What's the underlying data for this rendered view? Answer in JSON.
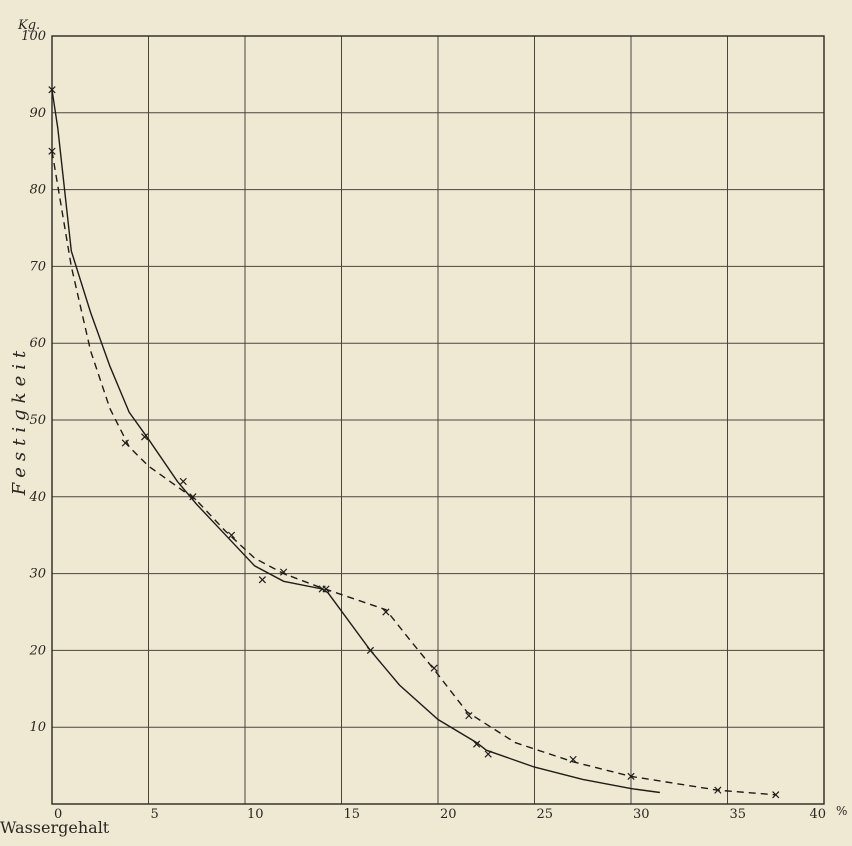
{
  "chart_data": {
    "type": "line",
    "xlabel": "Wassergehalt",
    "ylabel": "Festigkeit",
    "y_unit": "Kg.",
    "x_unit": "%",
    "xlim": [
      0,
      40
    ],
    "ylim": [
      0,
      100
    ],
    "x_ticks": [
      "0",
      "5",
      "10",
      "15",
      "20",
      "25",
      "30",
      "35",
      "40"
    ],
    "y_ticks": [
      "10",
      "20",
      "30",
      "40",
      "50",
      "60",
      "70",
      "80",
      "90",
      "100"
    ],
    "grid": true,
    "series": [
      {
        "style": "solid",
        "x": [
          0,
          0.3,
          1,
          2,
          3,
          4,
          5,
          6.5,
          7.5,
          9,
          10.5,
          12,
          14,
          14.3,
          16.5,
          18,
          20,
          22,
          22.5,
          25,
          27.5,
          30,
          31.5
        ],
        "y": [
          93,
          88,
          72,
          64,
          57,
          51,
          47.5,
          42,
          39,
          35,
          31,
          29,
          28,
          27.5,
          20,
          15.5,
          11,
          8,
          7,
          4.8,
          3.2,
          2,
          1.5
        ],
        "markers_x": [
          0,
          4.8,
          6.8,
          14.2,
          16.5,
          22,
          22.6
        ],
        "markers_y": [
          93,
          47.8,
          42,
          28,
          20,
          7.8,
          6.5
        ]
      },
      {
        "style": "dashed",
        "x": [
          0,
          1,
          2,
          3,
          4,
          5,
          7.5,
          9,
          10.5,
          12,
          13.8,
          17.3,
          18.5,
          19.8,
          21.5,
          24,
          27,
          30,
          34.5,
          37.5
        ],
        "y": [
          85,
          70,
          59,
          51.5,
          46.5,
          44,
          39.5,
          35.5,
          32,
          30,
          28.3,
          25.3,
          21.5,
          17.5,
          12,
          8,
          5.5,
          3.6,
          1.8,
          1.2
        ],
        "markers_x": [
          0,
          3.8,
          7.3,
          9.3,
          10.9,
          12,
          14,
          17.3,
          19.8,
          21.6,
          27,
          30,
          34.5,
          37.5
        ],
        "markers_y": [
          85,
          47,
          40,
          35,
          29.2,
          30.2,
          28,
          25,
          17.7,
          11.5,
          5.8,
          3.6,
          1.8,
          1.2
        ]
      }
    ]
  }
}
